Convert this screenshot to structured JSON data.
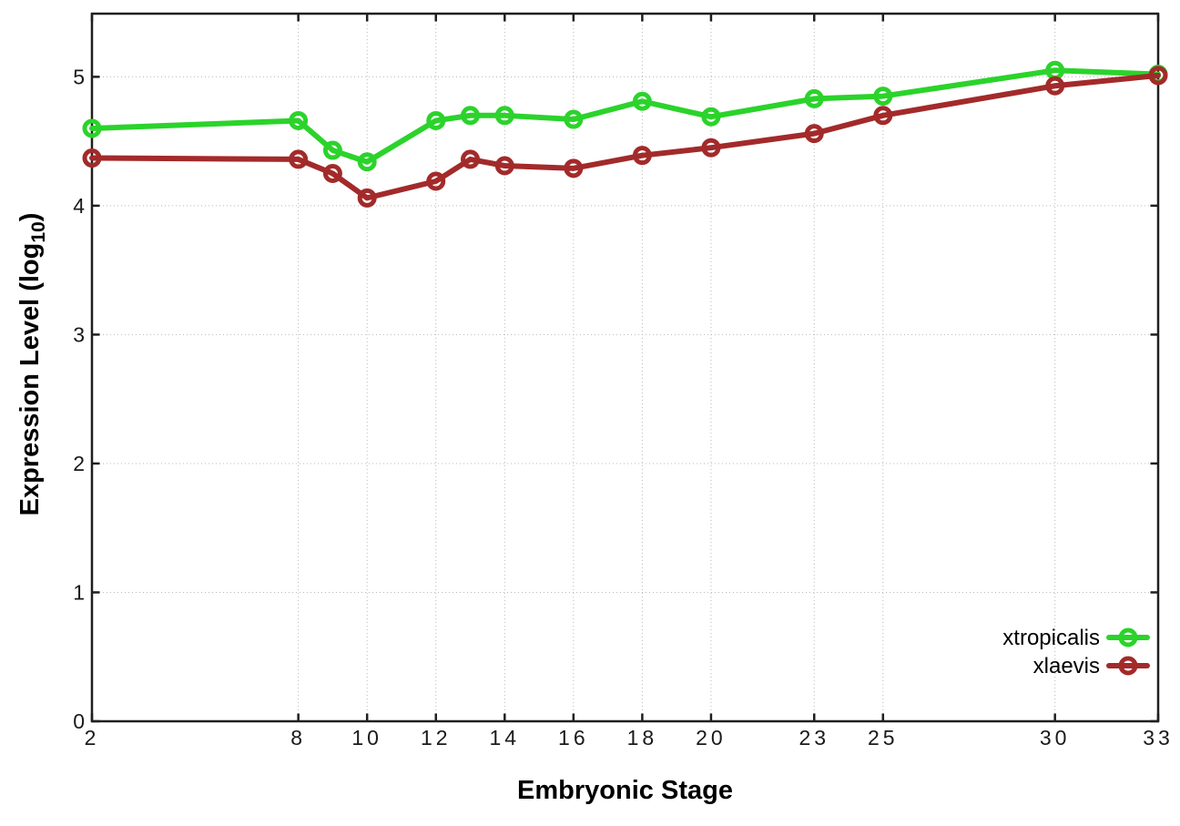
{
  "figure": {
    "background": "#ffffff",
    "border_color": "#1f1f1f",
    "grid_color": "#b8b8b8",
    "tick_text_color": "#1a1a1a"
  },
  "chart_data": {
    "type": "line",
    "title": "",
    "xlabel": "Embryonic Stage",
    "ylabel": "Expression Level (log10)",
    "ylabel_main": "Expression Level (log",
    "ylabel_sub": "10",
    "ylabel_close": ")",
    "xlim": [
      2,
      33
    ],
    "ylim": [
      0,
      5.49
    ],
    "x_ticks": [
      2,
      8,
      10,
      12,
      14,
      16,
      18,
      20,
      23,
      25,
      30,
      33
    ],
    "y_ticks": [
      0,
      1,
      2,
      3,
      4,
      5
    ],
    "grid": "dotted",
    "legend_position": "inside-right-lower",
    "marker": "open-circle",
    "x": [
      2,
      8,
      9,
      10,
      12,
      13,
      14,
      16,
      18,
      20,
      23,
      25,
      30,
      33
    ],
    "series": [
      {
        "name": "xtropicalis",
        "color": "#2bd32b",
        "values": [
          4.6,
          4.66,
          4.43,
          4.34,
          4.66,
          4.7,
          4.7,
          4.67,
          4.81,
          4.69,
          4.83,
          4.85,
          5.05,
          5.02
        ]
      },
      {
        "name": "xlaevis",
        "color": "#a32a2a",
        "values": [
          4.37,
          4.36,
          4.25,
          4.06,
          4.19,
          4.36,
          4.31,
          4.29,
          4.39,
          4.45,
          4.56,
          4.7,
          4.93,
          5.01
        ]
      }
    ]
  }
}
